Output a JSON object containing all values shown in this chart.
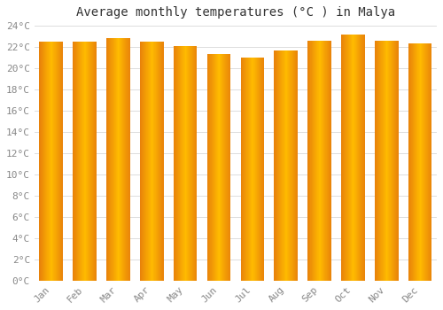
{
  "title": "Average monthly temperatures (°C ) in Malya",
  "months": [
    "Jan",
    "Feb",
    "Mar",
    "Apr",
    "May",
    "Jun",
    "Jul",
    "Aug",
    "Sep",
    "Oct",
    "Nov",
    "Dec"
  ],
  "values": [
    22.5,
    22.5,
    22.8,
    22.5,
    22.1,
    21.3,
    21.0,
    21.7,
    22.6,
    23.2,
    22.6,
    22.3
  ],
  "bar_color_left": "#E8820A",
  "bar_color_center": "#FFBB00",
  "bar_color_right": "#E8820A",
  "background_color": "#FFFFFF",
  "fig_background": "#FFFFFF",
  "grid_color": "#DDDDDD",
  "ylim": [
    0,
    24
  ],
  "ytick_step": 2,
  "title_fontsize": 10,
  "tick_fontsize": 8,
  "tick_color": "#888888",
  "title_color": "#333333",
  "bar_width": 0.7
}
